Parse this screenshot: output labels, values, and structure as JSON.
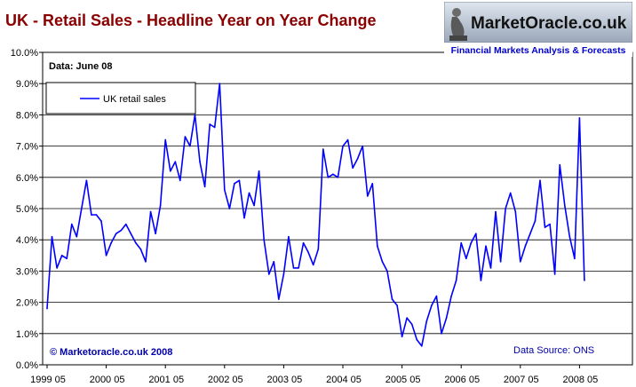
{
  "logo": {
    "site": "MarketOracle.co.uk",
    "tagline": "Financial Markets Analysis & Forecasts"
  },
  "colors": {
    "title": "#8b0000",
    "series": "#0000ff",
    "note": "#0000aa"
  },
  "chart_data": {
    "type": "line",
    "title": "UK - Retail Sales - Headline Year on Year Change",
    "xlabel": "",
    "ylabel": "",
    "ylim": [
      0,
      10
    ],
    "y_format": "percent_1dp",
    "y_ticks": [
      "0.0%",
      "1.0%",
      "2.0%",
      "3.0%",
      "4.0%",
      "5.0%",
      "6.0%",
      "7.0%",
      "8.0%",
      "9.0%",
      "10.0%"
    ],
    "x_ticks": [
      "1999 05",
      "2000 05",
      "2001 05",
      "2002 05",
      "2003 05",
      "2004 05",
      "2005 05",
      "2006 05",
      "2007 05",
      "2008 05"
    ],
    "x_start": "1999-05",
    "grid": "horizontal",
    "legend_position": "top-left",
    "annotations": {
      "data_date": "Data: June 08",
      "copyright": "© Marketoracle.co.uk 2008",
      "source": "Data Source: ONS"
    },
    "series": [
      {
        "name": "UK retail sales",
        "color": "#0000ff",
        "values": [
          1.8,
          4.1,
          3.1,
          3.5,
          3.4,
          4.5,
          4.1,
          5.0,
          5.9,
          4.8,
          4.8,
          4.6,
          3.5,
          3.9,
          4.2,
          4.3,
          4.5,
          4.2,
          3.9,
          3.7,
          3.3,
          4.9,
          4.2,
          5.1,
          7.2,
          6.2,
          6.5,
          5.9,
          7.3,
          7.0,
          8.0,
          6.5,
          5.7,
          7.7,
          7.6,
          9.0,
          5.6,
          5.0,
          5.8,
          5.9,
          4.7,
          5.5,
          5.1,
          6.2,
          4.0,
          2.9,
          3.3,
          2.1,
          2.9,
          4.1,
          3.1,
          3.1,
          3.9,
          3.6,
          3.2,
          3.7,
          6.9,
          6.0,
          6.1,
          6.0,
          7.0,
          7.2,
          6.3,
          6.6,
          7.0,
          5.4,
          5.8,
          3.8,
          3.3,
          3.0,
          2.1,
          1.9,
          0.9,
          1.5,
          1.3,
          0.8,
          0.6,
          1.4,
          1.9,
          2.2,
          1.0,
          1.5,
          2.2,
          2.7,
          3.9,
          3.4,
          3.9,
          4.2,
          2.7,
          3.8,
          3.1,
          4.9,
          3.3,
          5.0,
          5.5,
          4.9,
          3.3,
          3.8,
          4.2,
          4.6,
          5.9,
          4.4,
          4.5,
          2.9,
          6.4,
          5.1,
          4.1,
          3.4,
          7.9,
          2.7
        ]
      }
    ]
  }
}
